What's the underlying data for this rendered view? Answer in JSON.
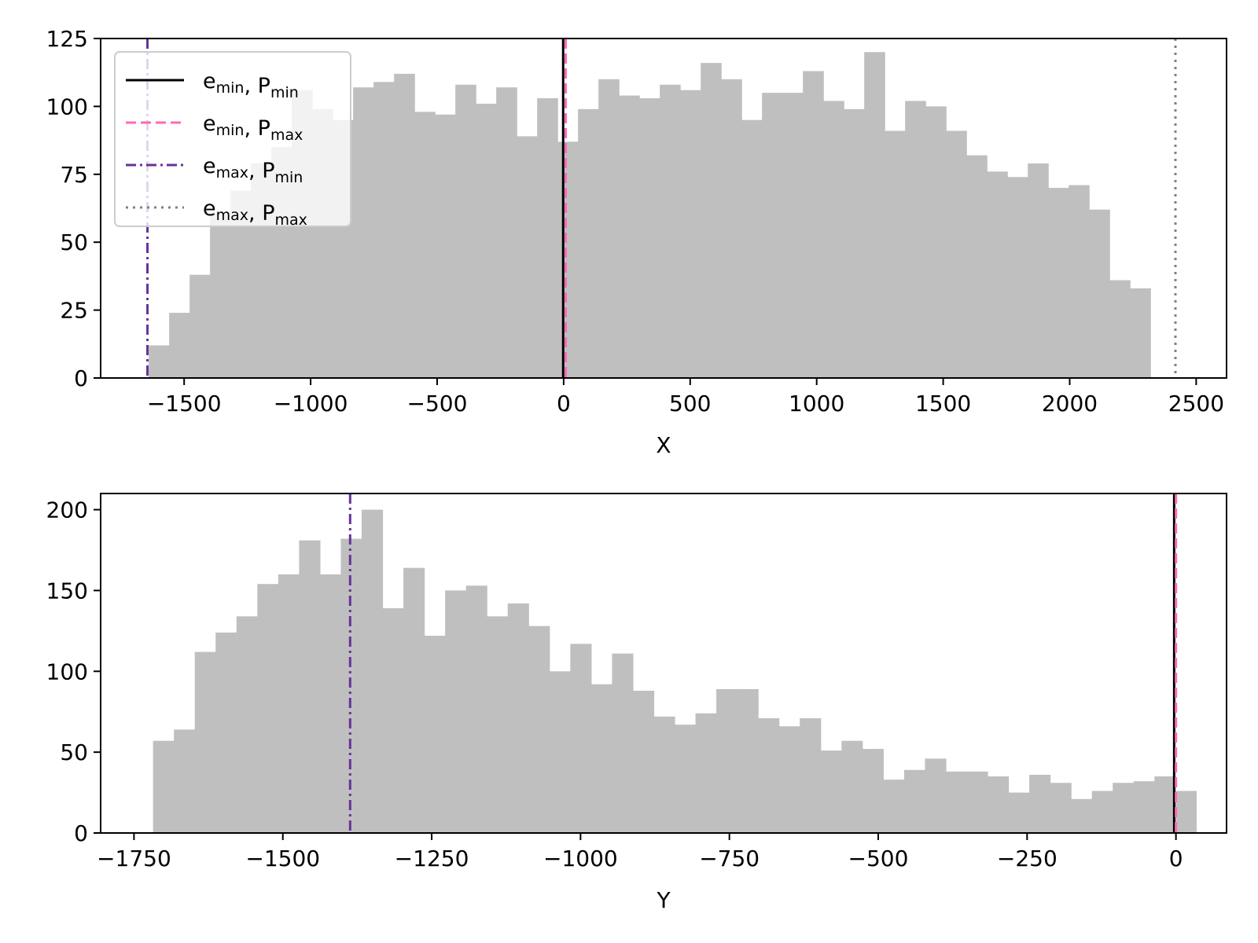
{
  "chart_data": [
    {
      "type": "bar",
      "subtype": "histogram",
      "xlabel": "X",
      "ylabel": "",
      "xlim": [
        -1830,
        2620
      ],
      "ylim": [
        0,
        125
      ],
      "xticks": [
        -1500,
        -1000,
        -500,
        0,
        500,
        1000,
        1500,
        2000,
        2500
      ],
      "yticks": [
        0,
        25,
        50,
        75,
        100,
        125
      ],
      "bin_start": -1640,
      "bin_width": 80.8,
      "values": [
        12,
        24,
        38,
        61,
        69,
        79,
        85,
        106,
        99,
        95,
        107,
        109,
        112,
        98,
        97,
        108,
        101,
        107,
        89,
        103,
        87,
        99,
        110,
        104,
        103,
        108,
        106,
        116,
        110,
        95,
        105,
        105,
        113,
        102,
        99,
        120,
        91,
        102,
        100,
        91,
        82,
        76,
        74,
        79,
        70,
        71,
        62,
        36,
        33
      ],
      "bar_color": "#bfbfbf",
      "vlines": [
        {
          "key": "min_min",
          "x": -2,
          "color": "#000000",
          "style": "solid"
        },
        {
          "key": "min_max",
          "x": 8,
          "color": "#ff69b4",
          "style": "dashed"
        },
        {
          "key": "max_min",
          "x": -1645,
          "color": "#663399",
          "style": "dashdot"
        },
        {
          "key": "max_max",
          "x": 2418,
          "color": "#808080",
          "style": "dotted"
        }
      ],
      "legend": {
        "position": "upper-left",
        "entries": [
          {
            "e": "e",
            "e_sub": "min",
            "sep": ", ",
            "p": "P",
            "p_sub": "min",
            "color": "#000000",
            "style": "solid"
          },
          {
            "e": "e",
            "e_sub": "min",
            "sep": ", ",
            "p": "P",
            "p_sub": "max",
            "color": "#ff69b4",
            "style": "dashed"
          },
          {
            "e": "e",
            "e_sub": "max",
            "sep": ", ",
            "p": "P",
            "p_sub": "min",
            "color": "#663399",
            "style": "dashdot"
          },
          {
            "e": "e",
            "e_sub": "max",
            "sep": ", ",
            "p": "P",
            "p_sub": "max",
            "color": "#808080",
            "style": "dotted"
          }
        ]
      }
    },
    {
      "type": "bar",
      "subtype": "histogram",
      "xlabel": "Y",
      "ylabel": "",
      "xlim": [
        -1806,
        85
      ],
      "ylim": [
        0,
        210
      ],
      "xticks": [
        -1750,
        -1500,
        -1250,
        -1000,
        -750,
        -500,
        -250,
        0
      ],
      "yticks": [
        0,
        50,
        100,
        150,
        200
      ],
      "bin_start": -1718,
      "bin_width": 35.04,
      "values": [
        57,
        64,
        112,
        124,
        134,
        154,
        160,
        181,
        160,
        182,
        200,
        139,
        164,
        122,
        150,
        153,
        134,
        142,
        128,
        100,
        117,
        92,
        111,
        88,
        72,
        67,
        74,
        89,
        89,
        71,
        66,
        71,
        51,
        57,
        52,
        33,
        39,
        46,
        38,
        38,
        35,
        25,
        36,
        31,
        21,
        26,
        31,
        32,
        35,
        26
      ],
      "bar_color": "#bfbfbf",
      "vlines": [
        {
          "key": "min_min",
          "x": -3,
          "color": "#000000",
          "style": "solid"
        },
        {
          "key": "min_max",
          "x": 0,
          "color": "#ff69b4",
          "style": "dashed"
        },
        {
          "key": "max_min",
          "x": -1387,
          "color": "#663399",
          "style": "dashdot"
        }
      ]
    }
  ]
}
